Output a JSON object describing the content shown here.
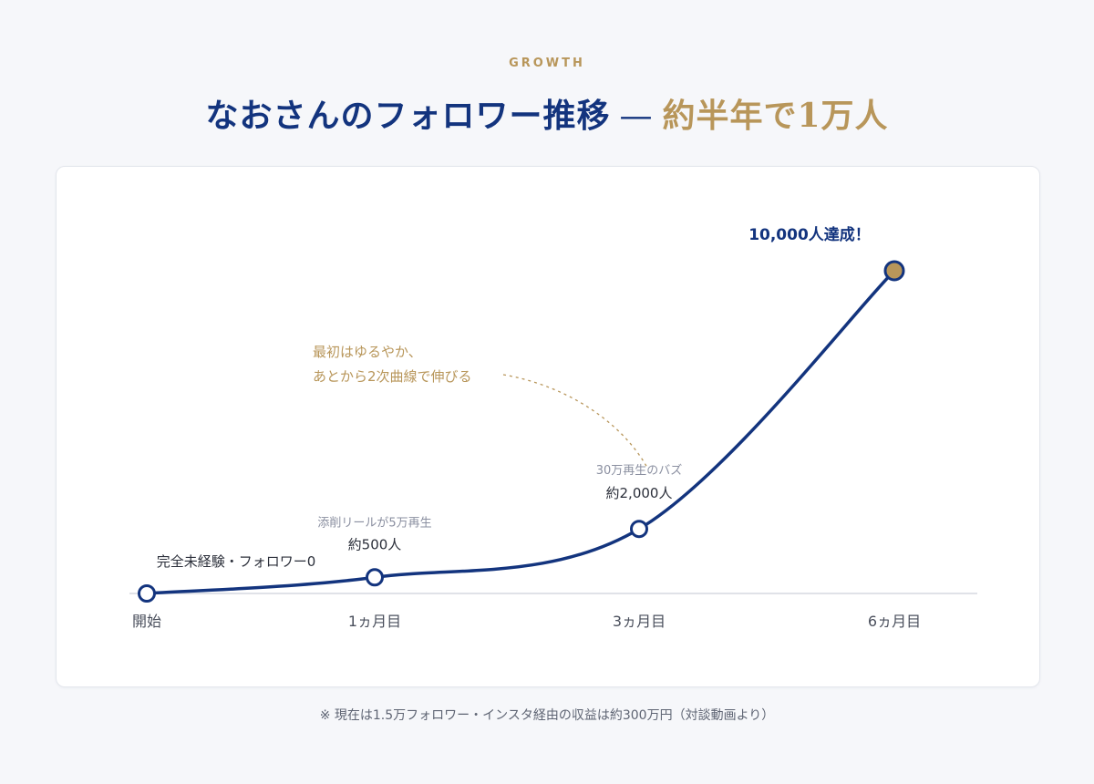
{
  "header": {
    "eyebrow": "GROWTH",
    "title_main": "なおさんのフォロワー推移",
    "title_dash": "—",
    "title_accent": "約半年で1万人"
  },
  "chart_data": {
    "type": "line",
    "categories": [
      "開始",
      "1ヵ月目",
      "3ヵ月目",
      "6ヵ月目"
    ],
    "series": [
      {
        "values": [
          0,
          500,
          2000,
          10000
        ]
      }
    ],
    "ylim": [
      0,
      10000
    ],
    "grid": false,
    "point_labels": [
      {
        "caption": "",
        "value_label": "完全未経験・フォロワー0"
      },
      {
        "caption": "添削リールが5万再生",
        "value_label": "約500人"
      },
      {
        "caption": "30万再生のバズ",
        "value_label": "約2,000人"
      },
      {
        "caption": "",
        "value_label": "10,000人達成！"
      }
    ],
    "annotation": {
      "lines": [
        "最初はゆるやか、",
        "あとから2次曲線で伸びる"
      ]
    },
    "colors": {
      "line": "#13347e",
      "accent": "#b8965a",
      "axis": "#d6d9e0",
      "text": "#2b2f3a",
      "muted": "#8a8fa0"
    }
  },
  "footnote": "※ 現在は1.5万フォロワー・インスタ経由の収益は約300万円（対談動画より）"
}
